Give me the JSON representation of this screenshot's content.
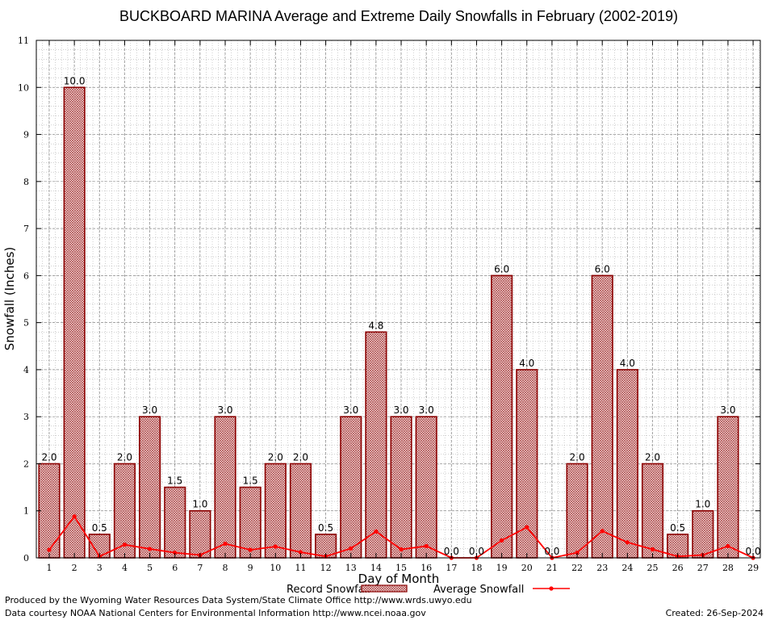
{
  "footer": {
    "produced_by": "Produced by the Wyoming Water Resources Data System/State Climate Office http://www.wrds.uwyo.edu",
    "courtesy": "Data courtesy NOAA National Centers for Environmental Information http://www.ncei.noaa.gov",
    "created": "Created:  26-Sep-2024"
  },
  "colors": {
    "bar_fill": "#e9c9c9",
    "bar_stroke": "#8b0000",
    "line": "#ff0000",
    "grid": "#a0a0a0"
  },
  "chart_data": {
    "type": "bar",
    "title": "BUCKBOARD MARINA Average and Extreme Daily Snowfalls in February (2002-2019)",
    "xlabel": "Day of Month",
    "ylabel": "Snowfall (Inches)",
    "ylim": [
      0,
      11
    ],
    "yticks": [
      0,
      1,
      2,
      3,
      4,
      5,
      6,
      7,
      8,
      9,
      10,
      11
    ],
    "categories": [
      "1",
      "2",
      "3",
      "4",
      "5",
      "6",
      "7",
      "8",
      "9",
      "10",
      "11",
      "12",
      "13",
      "14",
      "15",
      "16",
      "17",
      "18",
      "19",
      "20",
      "21",
      "22",
      "23",
      "24",
      "25",
      "26",
      "27",
      "28",
      "29"
    ],
    "series": [
      {
        "name": "Record Snowfall",
        "type": "bar",
        "values": [
          2.0,
          10.0,
          0.5,
          2.0,
          3.0,
          1.5,
          1.0,
          3.0,
          1.5,
          2.0,
          2.0,
          0.5,
          3.0,
          4.8,
          3.0,
          3.0,
          0.0,
          0.0,
          6.0,
          4.0,
          0.0,
          2.0,
          6.0,
          4.0,
          2.0,
          0.5,
          1.0,
          3.0,
          0.0
        ],
        "labels": [
          "2.0",
          "10.0",
          "0.5",
          "2.0",
          "3.0",
          "1.5",
          "1.0",
          "3.0",
          "1.5",
          "2.0",
          "2.0",
          "0.5",
          "3.0",
          "4.8",
          "3.0",
          "3.0",
          "0.0",
          "0.0",
          "6.0",
          "4.0",
          "0.0",
          "2.0",
          "6.0",
          "4.0",
          "2.0",
          "0.5",
          "1.0",
          "3.0",
          "0.0"
        ]
      },
      {
        "name": "Average Snowfall",
        "type": "line",
        "values": [
          0.17,
          0.88,
          0.03,
          0.28,
          0.19,
          0.11,
          0.06,
          0.3,
          0.17,
          0.24,
          0.12,
          0.03,
          0.2,
          0.56,
          0.18,
          0.25,
          0.0,
          0.0,
          0.37,
          0.65,
          0.0,
          0.11,
          0.57,
          0.33,
          0.18,
          0.03,
          0.06,
          0.25,
          0.0
        ]
      }
    ],
    "grid": true,
    "legend": "bottom"
  }
}
